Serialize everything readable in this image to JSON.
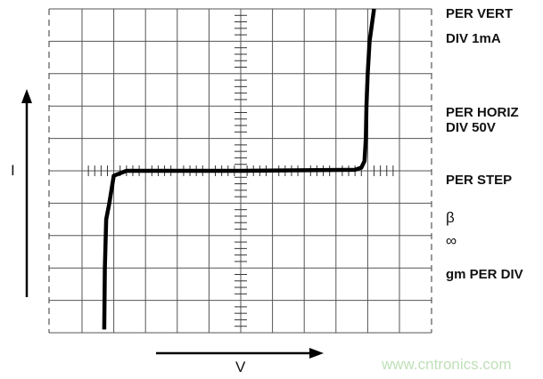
{
  "chart_data": {
    "type": "line",
    "title": "",
    "xlabel": "V",
    "ylabel": "I",
    "x_per_div": "50V",
    "y_per_div": "1mA",
    "xlim_div": [
      -5,
      5
    ],
    "ylim_div": [
      -5,
      5
    ],
    "grid": true,
    "series": [
      {
        "x_volts": [
          -215,
          -214,
          -212,
          -207,
          -200,
          -180,
          0,
          180,
          190,
          195,
          197,
          198,
          200,
          203,
          210
        ],
        "y_mA": [
          -4.9,
          -3,
          -1.5,
          -1,
          -0.15,
          0,
          0,
          0.03,
          0.1,
          0.3,
          1,
          2,
          3,
          4,
          5
        ],
        "color": "#000000"
      }
    ]
  },
  "labels": {
    "per_vert": "PER VERT",
    "div_vert": "DIV 1mA",
    "per_horiz": "PER HORIZ",
    "div_horiz": "DIV 50V",
    "per_step": "PER STEP",
    "beta": "β",
    "infinity": "∞",
    "gm_per_div": "gm PER DIV"
  },
  "axis_labels": {
    "i": "I",
    "v": "V"
  },
  "watermark": "www.cntronics.com"
}
